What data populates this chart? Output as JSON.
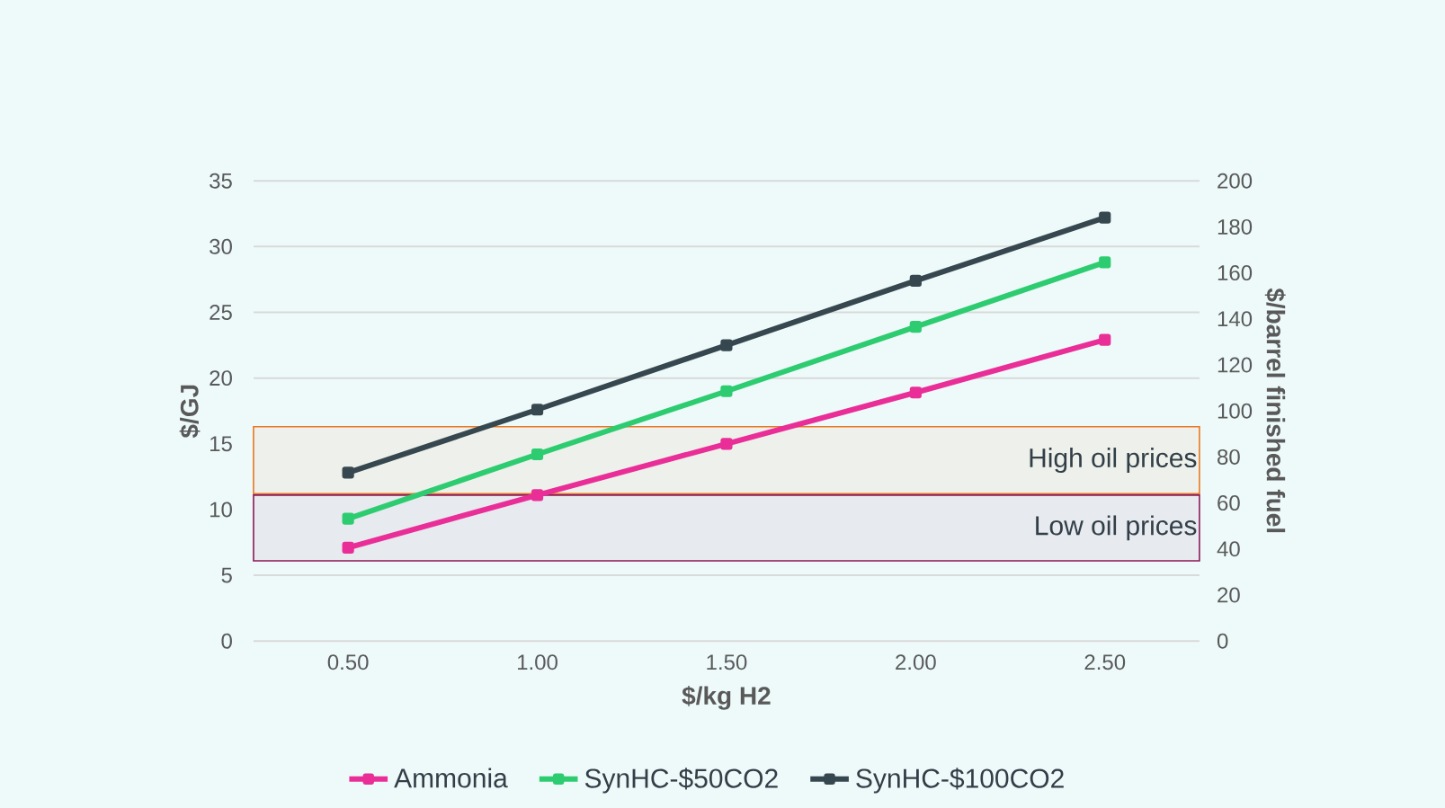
{
  "chart_data": {
    "type": "line",
    "xlabel": "$/kg H2",
    "ylabel": "$/GJ",
    "y2label": "$/barrel finished fuel",
    "categories": [
      "0.50",
      "1.00",
      "1.50",
      "2.00",
      "2.50"
    ],
    "series": [
      {
        "name": "Ammonia",
        "color": "#ea2e98",
        "values": [
          7.1,
          11.1,
          15.0,
          18.9,
          22.9
        ]
      },
      {
        "name": "SynHC-$50CO2",
        "color": "#2ecc71",
        "values": [
          9.3,
          14.2,
          19.0,
          23.9,
          28.8
        ]
      },
      {
        "name": "SynHC-$100CO2",
        "color": "#37474f",
        "values": [
          12.8,
          17.6,
          22.5,
          27.4,
          32.2
        ]
      }
    ],
    "ylim": [
      0,
      35
    ],
    "yticks": [
      0,
      5,
      10,
      15,
      20,
      25,
      30,
      35
    ],
    "y2lim": [
      0,
      200
    ],
    "y2ticks": [
      0,
      20,
      40,
      60,
      80,
      100,
      120,
      140,
      160,
      180,
      200
    ],
    "bands": [
      {
        "axis": "y",
        "from": 11.2,
        "to": 16.3,
        "label": "High oil prices",
        "color": "#e87722"
      },
      {
        "axis": "y",
        "from": 6.1,
        "to": 11.1,
        "label": "Low oil prices",
        "color": "#8b1a5a"
      }
    ],
    "grid": "y",
    "legend": "bottom",
    "marker": "square",
    "line_style": "solid"
  }
}
